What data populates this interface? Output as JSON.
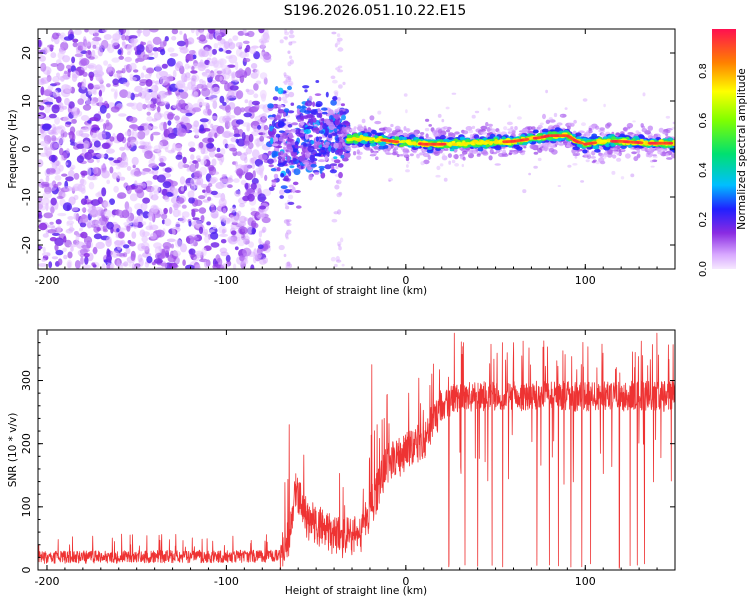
{
  "title": "S196.2026.051.10.22.E15",
  "chart_data": [
    {
      "type": "heatmap",
      "name": "spectrogram",
      "xlabel": "Height of straight line (km)",
      "ylabel": "Frequency (Hz)",
      "xlim": [
        -205,
        150
      ],
      "ylim": [
        -25,
        25
      ],
      "xticks": [
        -200,
        -100,
        0,
        100
      ],
      "yticks": [
        -20,
        -10,
        0,
        10,
        20
      ],
      "colorbar": {
        "label": "Normalized spectral amplitude",
        "range": [
          0.0,
          0.97
        ],
        "ticks": [
          "0.0",
          "0.2",
          "0.4",
          "0.6",
          "0.8"
        ],
        "tick_values": [
          0.0,
          0.2,
          0.4,
          0.6,
          0.8
        ]
      },
      "regions": [
        {
          "x_range": [
            -205,
            -77
          ],
          "description": "broadband noise",
          "amplitude": 0.05
        },
        {
          "x_range": [
            -77,
            -35
          ],
          "description": "emerging signal",
          "amplitude": 0.2
        },
        {
          "x_range": [
            -35,
            150
          ],
          "description": "narrow band near 1 Hz",
          "amplitude": 0.95
        }
      ],
      "ridge": {
        "x": [
          -75,
          -60,
          -45,
          -35,
          -25,
          -15,
          -5,
          0,
          10,
          20,
          40,
          60,
          75,
          80,
          90,
          95,
          100,
          110,
          120,
          135,
          150
        ],
        "y": [
          1.0,
          0.2,
          2.0,
          2.0,
          2.2,
          2.0,
          1.5,
          1.5,
          1.0,
          1.0,
          1.2,
          1.6,
          2.4,
          2.8,
          2.8,
          1.6,
          1.0,
          1.6,
          1.6,
          1.2,
          1.2
        ]
      }
    },
    {
      "type": "line",
      "name": "snr",
      "xlabel": "Height of straight line (km)",
      "ylabel": "SNR (10 * v/v)",
      "xlim": [
        -205,
        150
      ],
      "ylim": [
        0,
        380
      ],
      "xticks": [
        -200,
        -100,
        0,
        100
      ],
      "yticks": [
        0,
        100,
        200,
        300
      ],
      "series": [
        {
          "name": "SNR",
          "color": "#ee3333",
          "trend_x": [
            -205,
            -70,
            -65,
            -62,
            -55,
            -40,
            -35,
            -25,
            -18,
            -10,
            0,
            10,
            20,
            30,
            150
          ],
          "trend_y": [
            20,
            22,
            50,
            130,
            80,
            55,
            50,
            60,
            110,
            170,
            185,
            205,
            260,
            275,
            275
          ],
          "noise_amplitude": 20,
          "spikes_up": [
            [
              -65,
              230
            ],
            [
              -19,
              325
            ],
            [
              -16,
              230
            ],
            [
              -12,
              240
            ],
            [
              27,
              375
            ],
            [
              32,
              360
            ],
            [
              60,
              360
            ],
            [
              98,
              375
            ],
            [
              125,
              370
            ],
            [
              140,
              375
            ]
          ],
          "dropouts_x": [
            24,
            33,
            40,
            48,
            54,
            73,
            80,
            85,
            92,
            98,
            103,
            119,
            125,
            129,
            133
          ]
        }
      ]
    }
  ]
}
